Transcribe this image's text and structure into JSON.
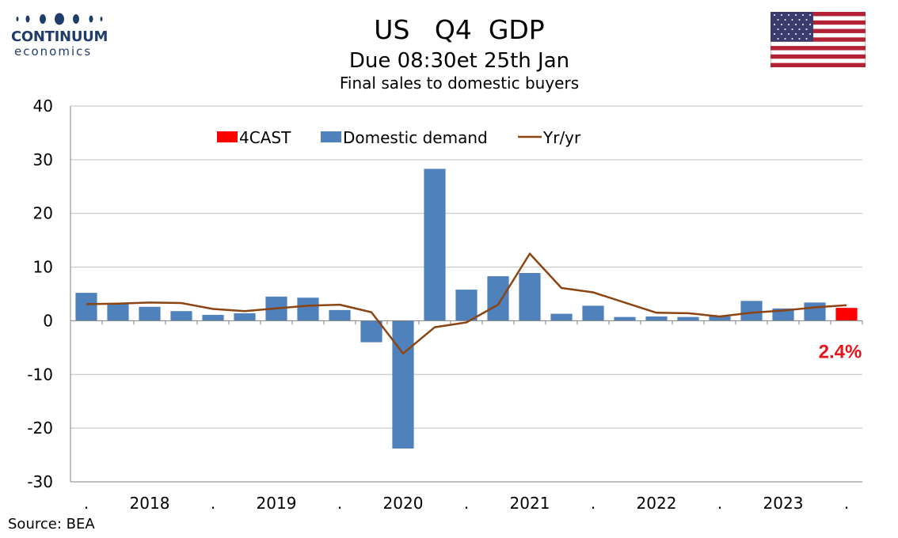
{
  "header": {
    "logo_name": "CONTINUUM",
    "logo_sub": "economics",
    "title": "US   Q4  GDP",
    "subtitle": "Due 08:30et 25th Jan",
    "subtitle2": "Final sales to domestic buyers"
  },
  "footer": {
    "source": "Source: BEA"
  },
  "colors": {
    "bars": "#4f81bd",
    "forecast": "#ff0000",
    "line": "#8b4513",
    "grid": "#bfbfbf",
    "logo": "#1f3d6b",
    "annotation": "#e8141b"
  },
  "flag_icon": "us-flag-icon",
  "chart_data": {
    "type": "bar",
    "ylim": [
      -30,
      40
    ],
    "yticks": [
      -30,
      -20,
      -10,
      0,
      10,
      20,
      30,
      40
    ],
    "grid": true,
    "legend_position": "top-center",
    "x_labels": [
      ".",
      "2018",
      ".",
      "2019",
      ".",
      "2020",
      ".",
      "2021",
      ".",
      "2022",
      ".",
      "2023",
      "."
    ],
    "periods": [
      "2017Q4",
      "2018Q1",
      "2018Q2",
      "2018Q3",
      "2018Q4",
      "2019Q1",
      "2019Q2",
      "2019Q3",
      "2019Q4",
      "2020Q1",
      "2020Q2",
      "2020Q3",
      "2020Q4",
      "2021Q1",
      "2021Q2",
      "2021Q3",
      "2021Q4",
      "2022Q1",
      "2022Q2",
      "2022Q3",
      "2022Q4",
      "2023Q1",
      "2023Q2",
      "2023Q3",
      "2023Q4"
    ],
    "series": [
      {
        "name": "4CAST",
        "type": "bar",
        "values": [
          null,
          null,
          null,
          null,
          null,
          null,
          null,
          null,
          null,
          null,
          null,
          null,
          null,
          null,
          null,
          null,
          null,
          null,
          null,
          null,
          null,
          null,
          null,
          null,
          2.4
        ]
      },
      {
        "name": "Domestic demand",
        "type": "bar",
        "values": [
          5.2,
          3.3,
          2.6,
          1.8,
          1.1,
          1.4,
          4.5,
          4.3,
          2.0,
          -4.0,
          -23.8,
          28.3,
          5.8,
          8.3,
          8.9,
          1.3,
          2.8,
          0.7,
          0.8,
          0.7,
          0.8,
          3.7,
          2.3,
          3.4,
          null
        ]
      },
      {
        "name": "Yr/yr",
        "type": "line",
        "values": [
          3.1,
          3.2,
          3.4,
          3.3,
          2.2,
          1.8,
          2.3,
          2.8,
          3.0,
          1.6,
          -6.1,
          -1.2,
          -0.3,
          3.0,
          12.5,
          6.1,
          5.3,
          3.4,
          1.5,
          1.4,
          0.8,
          1.5,
          1.9,
          2.5,
          2.9
        ]
      }
    ],
    "annotations": [
      {
        "text": "2.4%",
        "period": "2023Q4",
        "y": -5.6
      }
    ]
  }
}
